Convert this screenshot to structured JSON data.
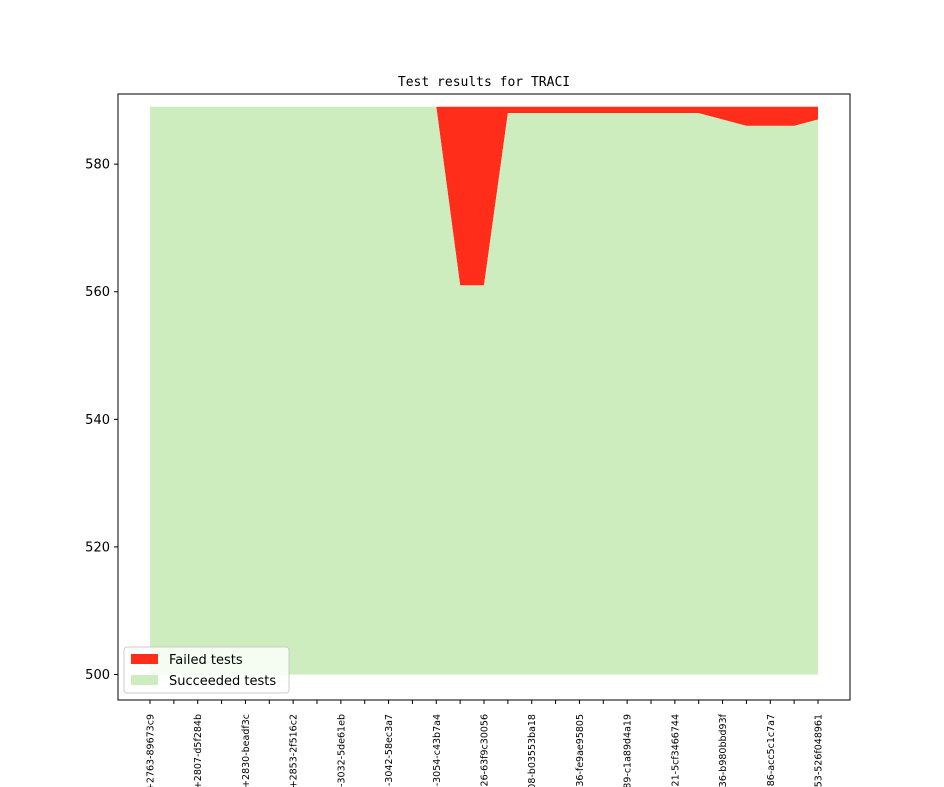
{
  "chart_data": {
    "type": "area",
    "title": "Test results for TRACI",
    "xlabel": "",
    "ylabel": "",
    "ylim": [
      496,
      591
    ],
    "yticks": [
      500,
      520,
      540,
      560,
      580
    ],
    "grid": false,
    "legend_placement": "bottom-left",
    "x_tick_labels": [
      "+2763-89673c9",
      "+2807-d5f284b",
      "+2830-beadf3c",
      "+2853-2f516c2",
      "-3032-5de61eb",
      "-3042-58ec3a7",
      "-3054-c43b7a4",
      "26-63f9c30056",
      "08-b03553ba18",
      "36-fe9ae95805",
      "89-c1a89d4a19",
      "21-5cf3466744",
      "36-b980bbd93f",
      "86-acc5c1c7a7",
      "53-526f048961"
    ],
    "total_tests": [
      589,
      589,
      589,
      589,
      589,
      589,
      589,
      589,
      589,
      589,
      589,
      589,
      589,
      589,
      589,
      589,
      589,
      589,
      589,
      589,
      589,
      589,
      589,
      589,
      589,
      589,
      589,
      589,
      589
    ],
    "succeeded_tests": [
      589,
      589,
      589,
      589,
      589,
      589,
      589,
      589,
      589,
      589,
      589,
      589,
      589,
      561,
      561,
      588,
      588,
      588,
      588,
      588,
      588,
      588,
      588,
      588,
      587,
      586,
      586,
      586,
      587
    ],
    "series": [
      {
        "name": "Failed tests",
        "color": "#ff2d1a"
      },
      {
        "name": "Succeeded tests",
        "color": "#ceedbe"
      }
    ]
  }
}
